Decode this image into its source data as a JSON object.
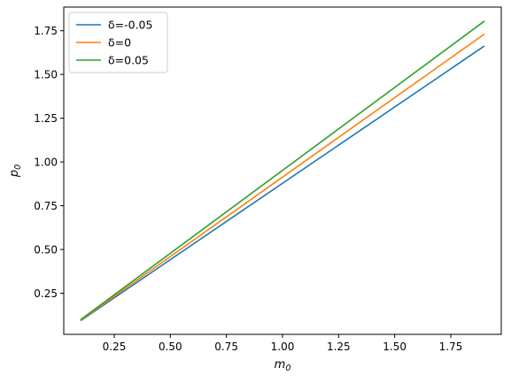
{
  "chart_data": {
    "type": "line",
    "title": "",
    "xlabel": "m",
    "xlabel_sub": "0",
    "ylabel": "p",
    "ylabel_sub": "0",
    "xlim": [
      0.025,
      1.975
    ],
    "ylim": [
      0.015,
      1.885
    ],
    "xticks": [
      0.25,
      0.5,
      0.75,
      1.0,
      1.25,
      1.5,
      1.75
    ],
    "xtick_labels": [
      "0.25",
      "0.50",
      "0.75",
      "1.00",
      "1.25",
      "1.50",
      "1.75"
    ],
    "yticks": [
      0.25,
      0.5,
      0.75,
      1.0,
      1.25,
      1.5,
      1.75
    ],
    "ytick_labels": [
      "0.25",
      "0.50",
      "0.75",
      "1.00",
      "1.25",
      "1.50",
      "1.75"
    ],
    "grid": false,
    "legend_position": "top-left",
    "series": [
      {
        "name": "δ=-0.05",
        "color": "#1f77b4",
        "x": [
          0.1,
          1.9
        ],
        "y": [
          0.093,
          1.663
        ]
      },
      {
        "name": "δ=0",
        "color": "#ff7f0e",
        "x": [
          0.1,
          1.9
        ],
        "y": [
          0.096,
          1.731
        ]
      },
      {
        "name": "δ=0.05",
        "color": "#2ca02c",
        "x": [
          0.1,
          1.9
        ],
        "y": [
          0.099,
          1.805
        ]
      }
    ]
  }
}
